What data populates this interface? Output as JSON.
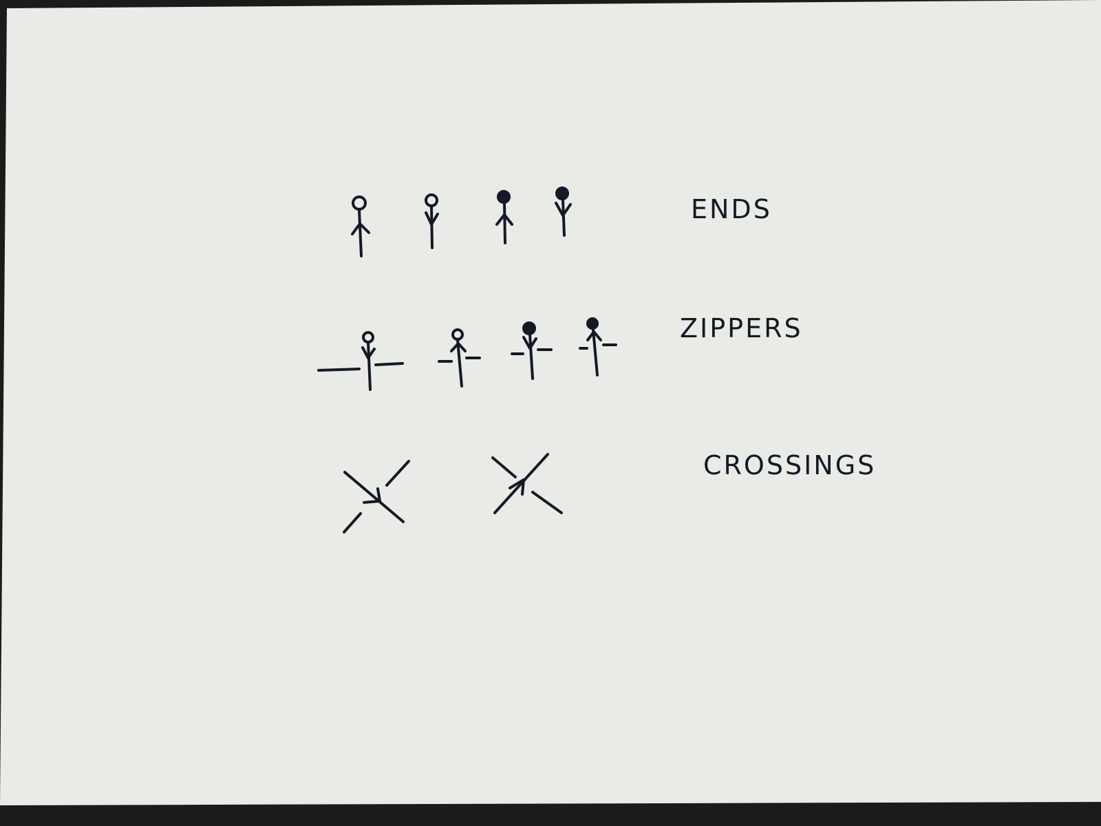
{
  "diagram": {
    "paper_color": "#e9ebe6",
    "ink_color": "#151826",
    "background_color": "#1a1c1b",
    "rows": [
      {
        "label": "ENDS",
        "symbols": [
          {
            "name": "end-open-arrow-up",
            "head": "open",
            "arrow": "up"
          },
          {
            "name": "end-open-arrow-down",
            "head": "open",
            "arrow": "down"
          },
          {
            "name": "end-filled-arrow-up",
            "head": "filled",
            "arrow": "up"
          },
          {
            "name": "end-filled-arrow-down",
            "head": "filled",
            "arrow": "down"
          }
        ]
      },
      {
        "label": "ZIPPERS",
        "symbols": [
          {
            "name": "zipper-open-arrow-down",
            "head": "open",
            "arrow": "down"
          },
          {
            "name": "zipper-open-arrow-up",
            "head": "open",
            "arrow": "up"
          },
          {
            "name": "zipper-filled-arrow-down",
            "head": "filled",
            "arrow": "down"
          },
          {
            "name": "zipper-filled-arrow-up",
            "head": "filled",
            "arrow": "up"
          }
        ]
      },
      {
        "label": "CROSSINGS",
        "symbols": [
          {
            "name": "crossing-over-arrow",
            "arrow": "down-right"
          },
          {
            "name": "crossing-under-arrow",
            "arrow": "up-right"
          }
        ]
      }
    ]
  }
}
